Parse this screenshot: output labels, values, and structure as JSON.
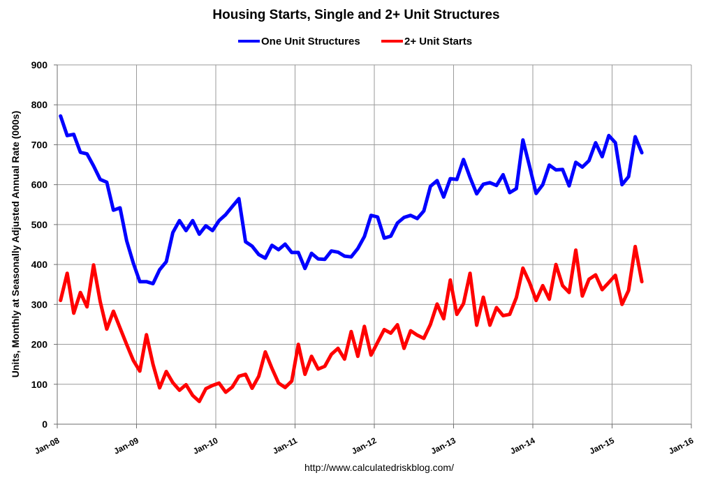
{
  "chart_data": {
    "type": "line",
    "title": "Housing Starts, Single and 2+ Unit Structures",
    "ylabel": "Units, Monthly at Seasonally Adjusted Annual Rate (000s)",
    "xlabel": "",
    "ylim": [
      0,
      900
    ],
    "yticks": [
      0,
      100,
      200,
      300,
      400,
      500,
      600,
      700,
      800,
      900
    ],
    "xlim": [
      "2008-01",
      "2016-01"
    ],
    "xticks": [
      "Jan-08",
      "Jan-09",
      "Jan-10",
      "Jan-11",
      "Jan-12",
      "Jan-13",
      "Jan-14",
      "Jan-15",
      "Jan-16"
    ],
    "grid": true,
    "legend_position": "top-center",
    "source": "http://www.calculatedriskblog.com/",
    "x_start": "2008-01",
    "series": [
      {
        "name": "One Unit Structures",
        "color": "#0000ff",
        "values": [
          772,
          723,
          726,
          681,
          677,
          647,
          613,
          606,
          536,
          542,
          460,
          404,
          357,
          357,
          352,
          387,
          407,
          480,
          510,
          485,
          510,
          476,
          497,
          485,
          510,
          525,
          545,
          565,
          457,
          446,
          425,
          416,
          448,
          437,
          451,
          430,
          430,
          390,
          428,
          414,
          413,
          434,
          431,
          421,
          419,
          440,
          470,
          523,
          519,
          466,
          471,
          504,
          518,
          523,
          515,
          534,
          596,
          610,
          569,
          615,
          613,
          663,
          618,
          577,
          601,
          605,
          598,
          625,
          580,
          590,
          712,
          646,
          578,
          600,
          649,
          637,
          638,
          597,
          656,
          644,
          660,
          705,
          670,
          723,
          705,
          600,
          620,
          720,
          680
        ]
      },
      {
        "name": "2+ Unit Starts",
        "color": "#ff0000",
        "values": [
          310,
          378,
          278,
          330,
          294,
          399,
          307,
          238,
          283,
          241,
          200,
          160,
          133,
          224,
          150,
          91,
          132,
          104,
          85,
          99,
          72,
          57,
          89,
          97,
          103,
          80,
          93,
          120,
          125,
          90,
          120,
          181,
          140,
          103,
          92,
          108,
          200,
          125,
          170,
          138,
          145,
          175,
          190,
          163,
          232,
          170,
          245,
          173,
          205,
          237,
          228,
          249,
          190,
          234,
          223,
          215,
          250,
          301,
          264,
          361,
          275,
          302,
          378,
          248,
          318,
          248,
          292,
          272,
          275,
          317,
          391,
          355,
          310,
          347,
          313,
          400,
          347,
          330,
          436,
          321,
          363,
          374,
          337,
          355,
          373,
          300,
          335,
          445,
          357
        ]
      }
    ]
  }
}
